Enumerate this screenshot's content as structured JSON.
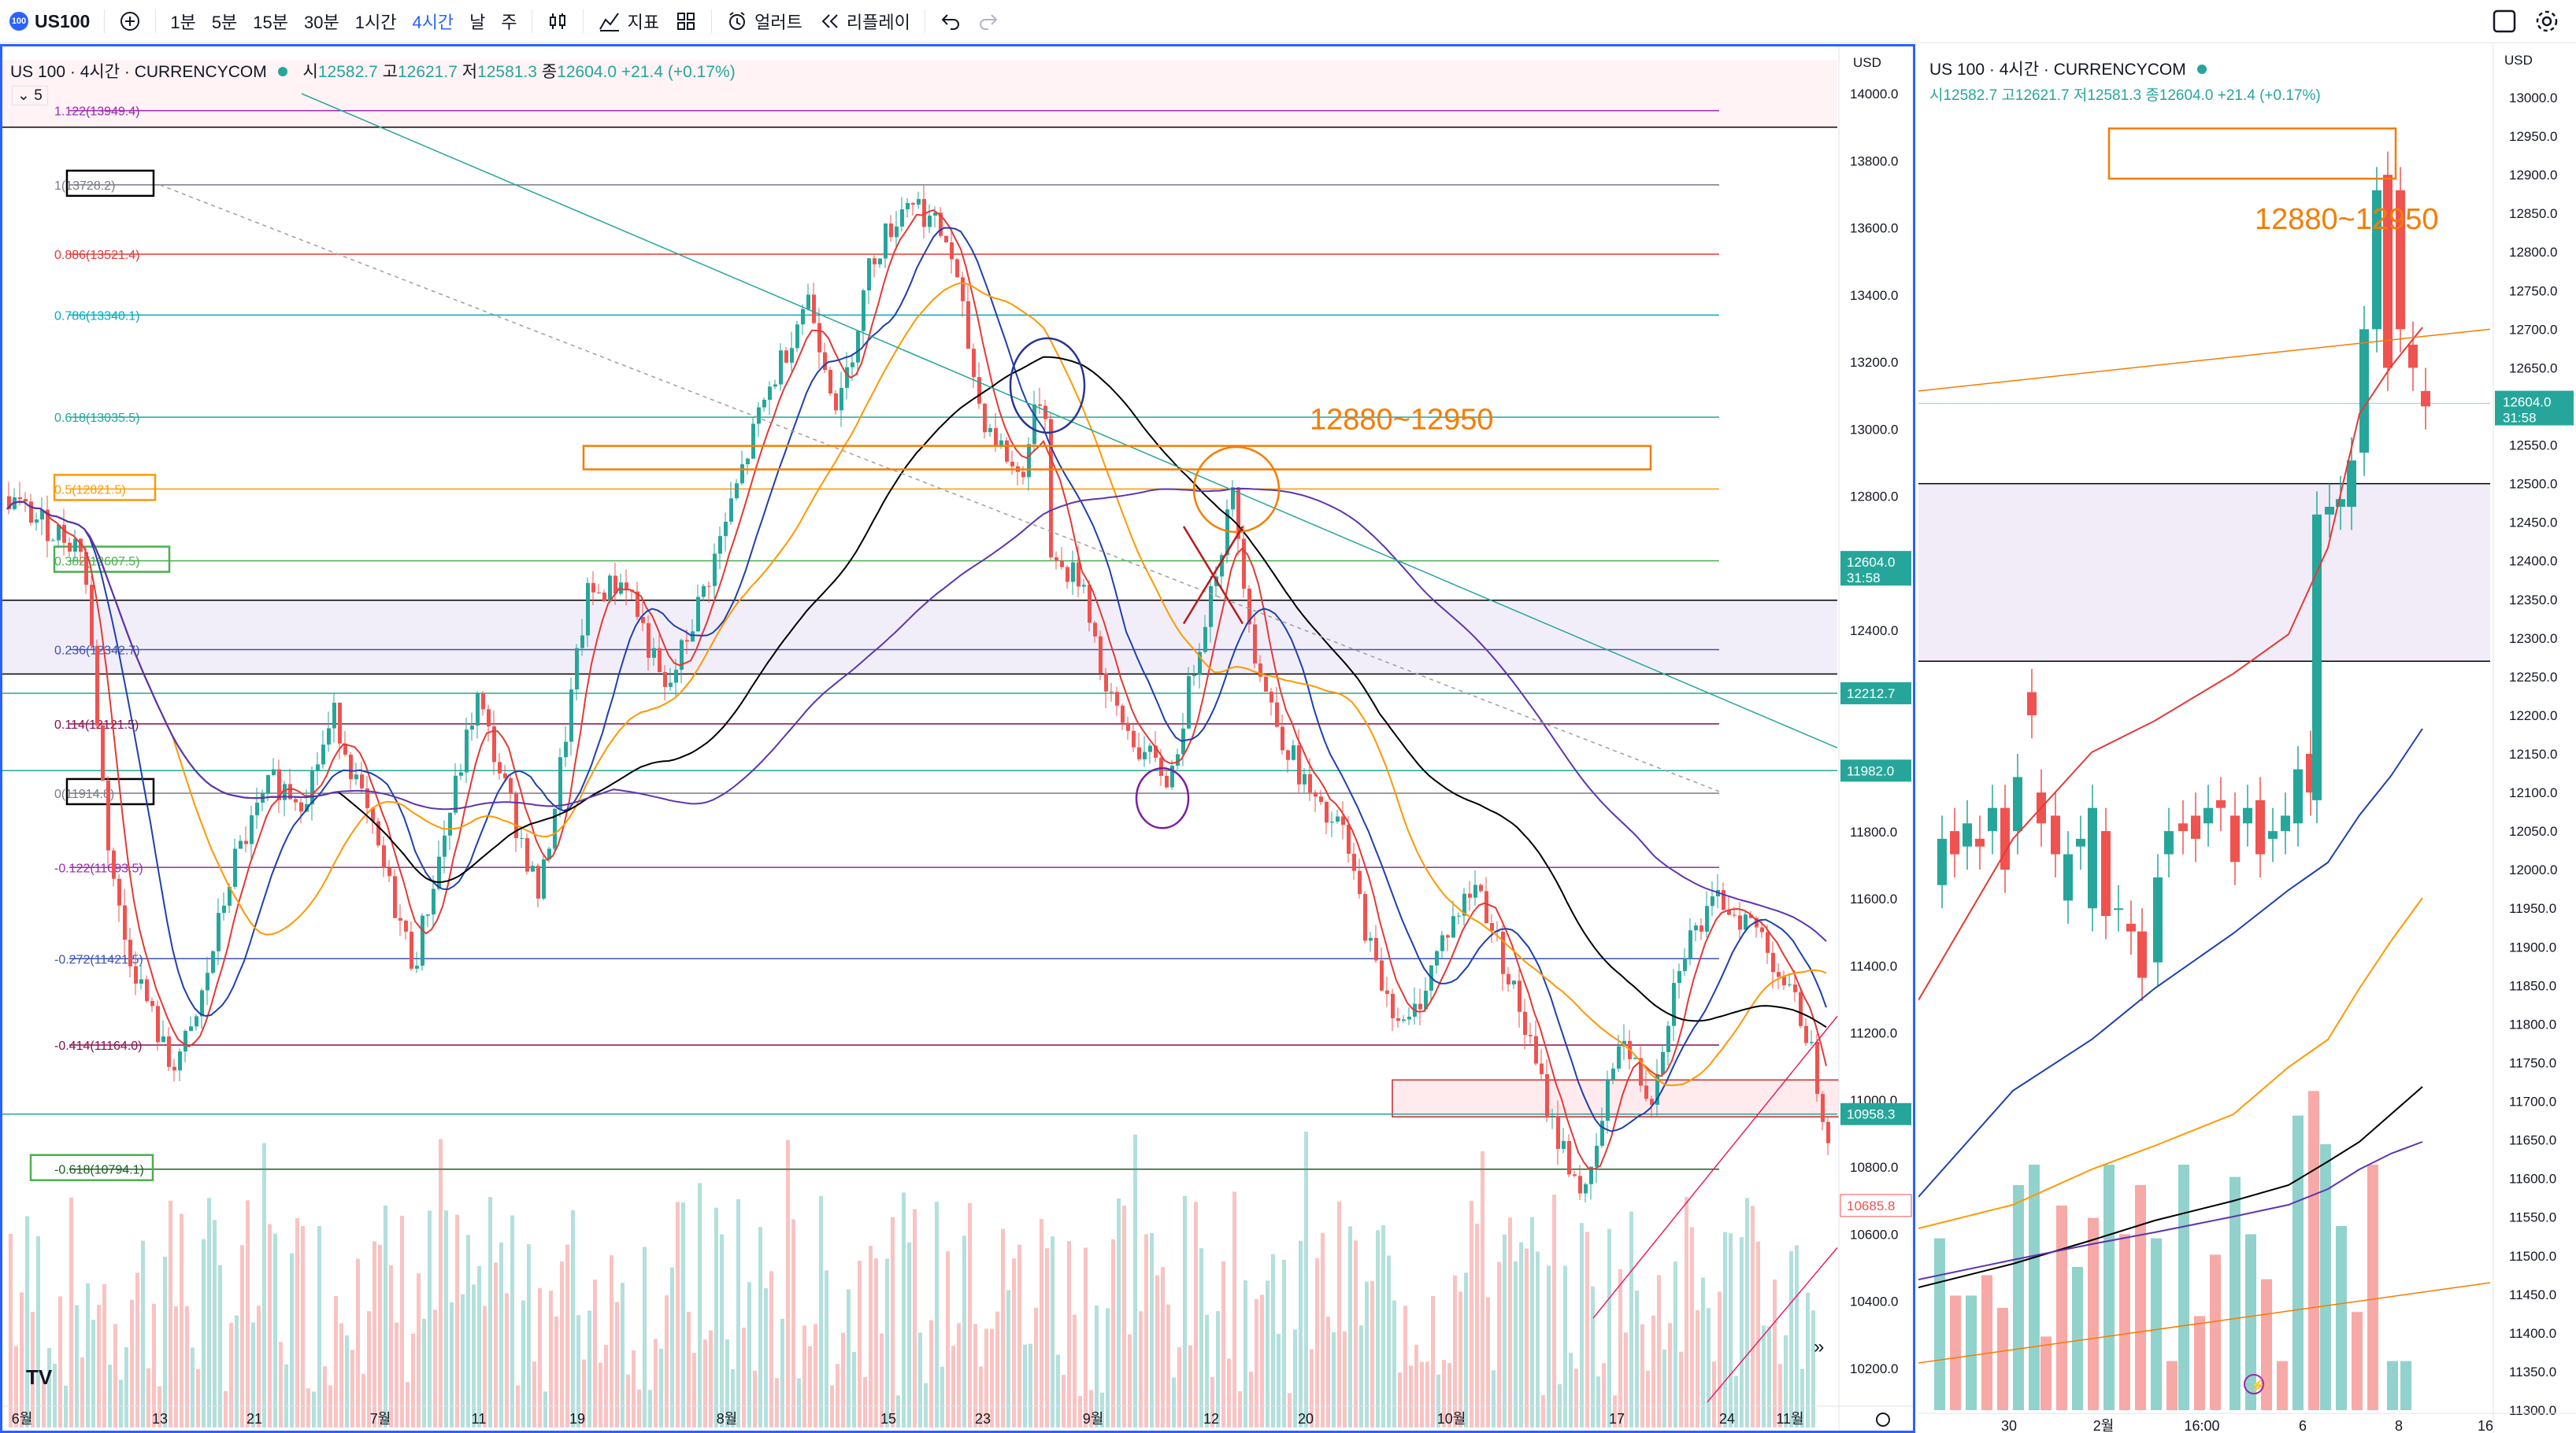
{
  "toolbar": {
    "symbol": "US100",
    "logo": "100",
    "add_icon": "plus-circle-icon",
    "intervals": [
      "1분",
      "5분",
      "15분",
      "30분",
      "1시간",
      "4시간",
      "날",
      "주"
    ],
    "active_interval": "4시간",
    "chart_type_icon": "candles-icon",
    "indicators_label": "지표",
    "templates_icon": "grid-icon",
    "alert_label": "얼러트",
    "replay_label": "리플레이",
    "undo_icon": "undo-icon",
    "redo_icon": "redo-icon"
  },
  "left_chart": {
    "title": "US 100 · 4시간 · CURRENCYCOM",
    "ohlc": {
      "o_label": "시",
      "o": "12582.7",
      "h_label": "고",
      "h": "12621.7",
      "l_label": "저",
      "l": "12581.3",
      "c_label": "종",
      "c": "12604.0",
      "change": "+21.4 (+0.17%)"
    },
    "indicator_count": "5",
    "currency": "USD",
    "price_ticks": [
      "14000.0",
      "13800.0",
      "13600.0",
      "13400.0",
      "13200.0",
      "13000.0",
      "12800.0",
      "12400.0",
      "11800.0",
      "11600.0",
      "11400.0",
      "11200.0",
      "11000.0",
      "10800.0",
      "10600.0",
      "10400.0",
      "10200.0"
    ],
    "badges": {
      "last": "12604.0",
      "countdown": "31:58",
      "b1": "12212.7",
      "b2": "11982.0",
      "b3": "10958.3",
      "b4": "10685.8"
    },
    "time_ticks": [
      "6월",
      "13",
      "21",
      "7월",
      "11",
      "19",
      "8월",
      "15",
      "23",
      "9월",
      "12",
      "20",
      "10월",
      "17",
      "24",
      "11월"
    ],
    "fib_levels": [
      {
        "label": "1.122(13949.4)",
        "price": 13949.4,
        "color": "#9c27b0"
      },
      {
        "label": "1(13728.2)",
        "price": 13728.2,
        "color": "#787b86",
        "boxed": "#000000"
      },
      {
        "label": "0.886(13521.4)",
        "price": 13521.4,
        "color": "#e53935"
      },
      {
        "label": "0.786(13340.1)",
        "price": 13340.1,
        "color": "#00acc1"
      },
      {
        "label": "0.618(13035.5)",
        "price": 13035.5,
        "color": "#26a69a"
      },
      {
        "label": "0.5(12821.5)",
        "price": 12821.5,
        "color": "#ff9800",
        "boxed": "#ff9800"
      },
      {
        "label": "0.382(12607.5)",
        "price": 12607.5,
        "color": "#4caf50",
        "boxed": "#4caf50"
      },
      {
        "label": "0.236(12342.7)",
        "price": 12342.7,
        "color": "#3f51b5"
      },
      {
        "label": "0.114(12121.5)",
        "price": 12121.5,
        "color": "#880e4f"
      },
      {
        "label": "0(11914.8)",
        "price": 11914.8,
        "color": "#787b86",
        "boxed": "#000000"
      },
      {
        "label": "-0.122(11693.5)",
        "price": 11693.5,
        "color": "#9c27b0"
      },
      {
        "label": "-0.272(11421.5)",
        "price": 11421.5,
        "color": "#3f51b5"
      },
      {
        "label": "-0.414(11164.0)",
        "price": 11164.0,
        "color": "#880e4f"
      },
      {
        "label": "-0.618(10794.1)",
        "price": 10794.1,
        "color": "#1b5e20",
        "boxed": "#4caf50"
      }
    ],
    "annotation": "12880~12950",
    "annotation_color": "#f57c00",
    "tv_logo": "tradingview-logo"
  },
  "right_chart": {
    "title": "US 100 · 4시간 · CURRENCYCOM",
    "ohlc_line": "시12582.7 고12621.7 저12581.3 종12604.0 +21.4 (+0.17%)",
    "currency": "USD",
    "price_ticks": [
      "13000.0",
      "12950.0",
      "12900.0",
      "12850.0",
      "12800.0",
      "12750.0",
      "12700.0",
      "12650.0",
      "12550.0",
      "12500.0",
      "12450.0",
      "12400.0",
      "12350.0",
      "12300.0",
      "12250.0",
      "12200.0",
      "12150.0",
      "12100.0",
      "12050.0",
      "12000.0",
      "11950.0",
      "11900.0",
      "11850.0",
      "11800.0",
      "11750.0",
      "11700.0",
      "11650.0",
      "11600.0",
      "11550.0",
      "11500.0",
      "11450.0",
      "11400.0",
      "11350.0",
      "11300.0"
    ],
    "badges": {
      "last": "12604.0",
      "countdown": "31:58"
    },
    "time_ticks": [
      "30",
      "2월",
      "16:00",
      "6",
      "8",
      "16"
    ],
    "annotation": "12880~12950",
    "expand_icon": "maximize-icon",
    "settings_icon": "gear-icon",
    "flash_icon": "lightning-icon"
  },
  "colors": {
    "up": "#26a69a",
    "down": "#ef5350",
    "accent": "#2962ff",
    "orange": "#f57c00"
  }
}
